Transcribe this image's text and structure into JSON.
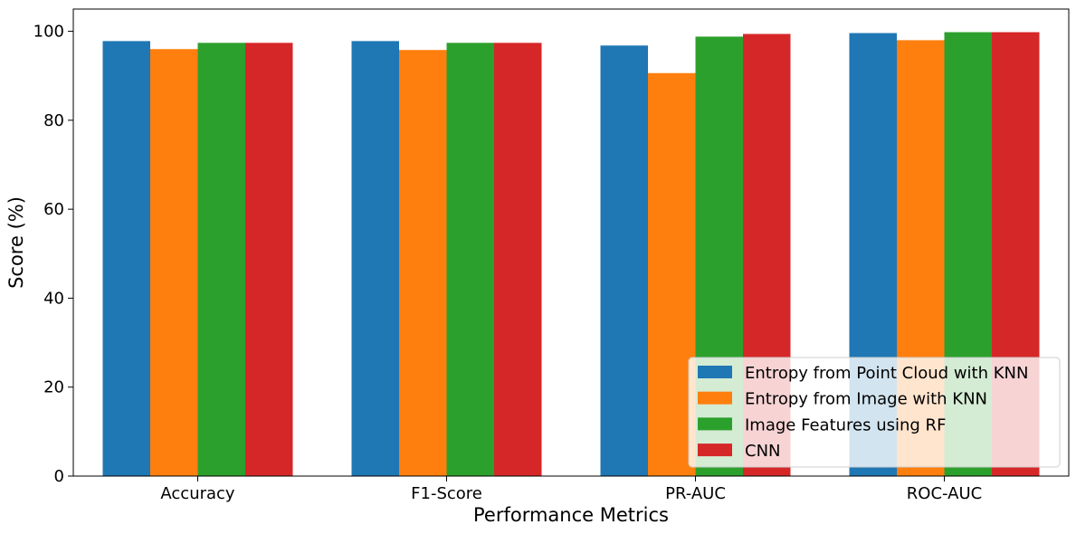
{
  "chart_data": {
    "type": "bar",
    "title": "",
    "xlabel": "Performance Metrics",
    "ylabel": "Score (%)",
    "categories": [
      "Accuracy",
      "F1-Score",
      "PR-AUC",
      "ROC-AUC"
    ],
    "ylim": [
      0,
      105
    ],
    "yticks": [
      "0",
      "20",
      "40",
      "60",
      "80",
      "100"
    ],
    "legend_position": "lower-right",
    "grid": false,
    "series": [
      {
        "name": "Entropy from Point Cloud with KNN",
        "color": "#1f77b4",
        "values": [
          97.8,
          97.8,
          96.8,
          99.6
        ]
      },
      {
        "name": "Entropy from Image with KNN",
        "color": "#ff7f0e",
        "values": [
          96.0,
          95.8,
          90.6,
          98.0
        ]
      },
      {
        "name": "Image Features using RF",
        "color": "#2ca02c",
        "values": [
          97.4,
          97.4,
          98.8,
          99.8
        ]
      },
      {
        "name": "CNN",
        "color": "#d62728",
        "values": [
          97.4,
          97.4,
          99.4,
          99.8
        ]
      }
    ]
  }
}
